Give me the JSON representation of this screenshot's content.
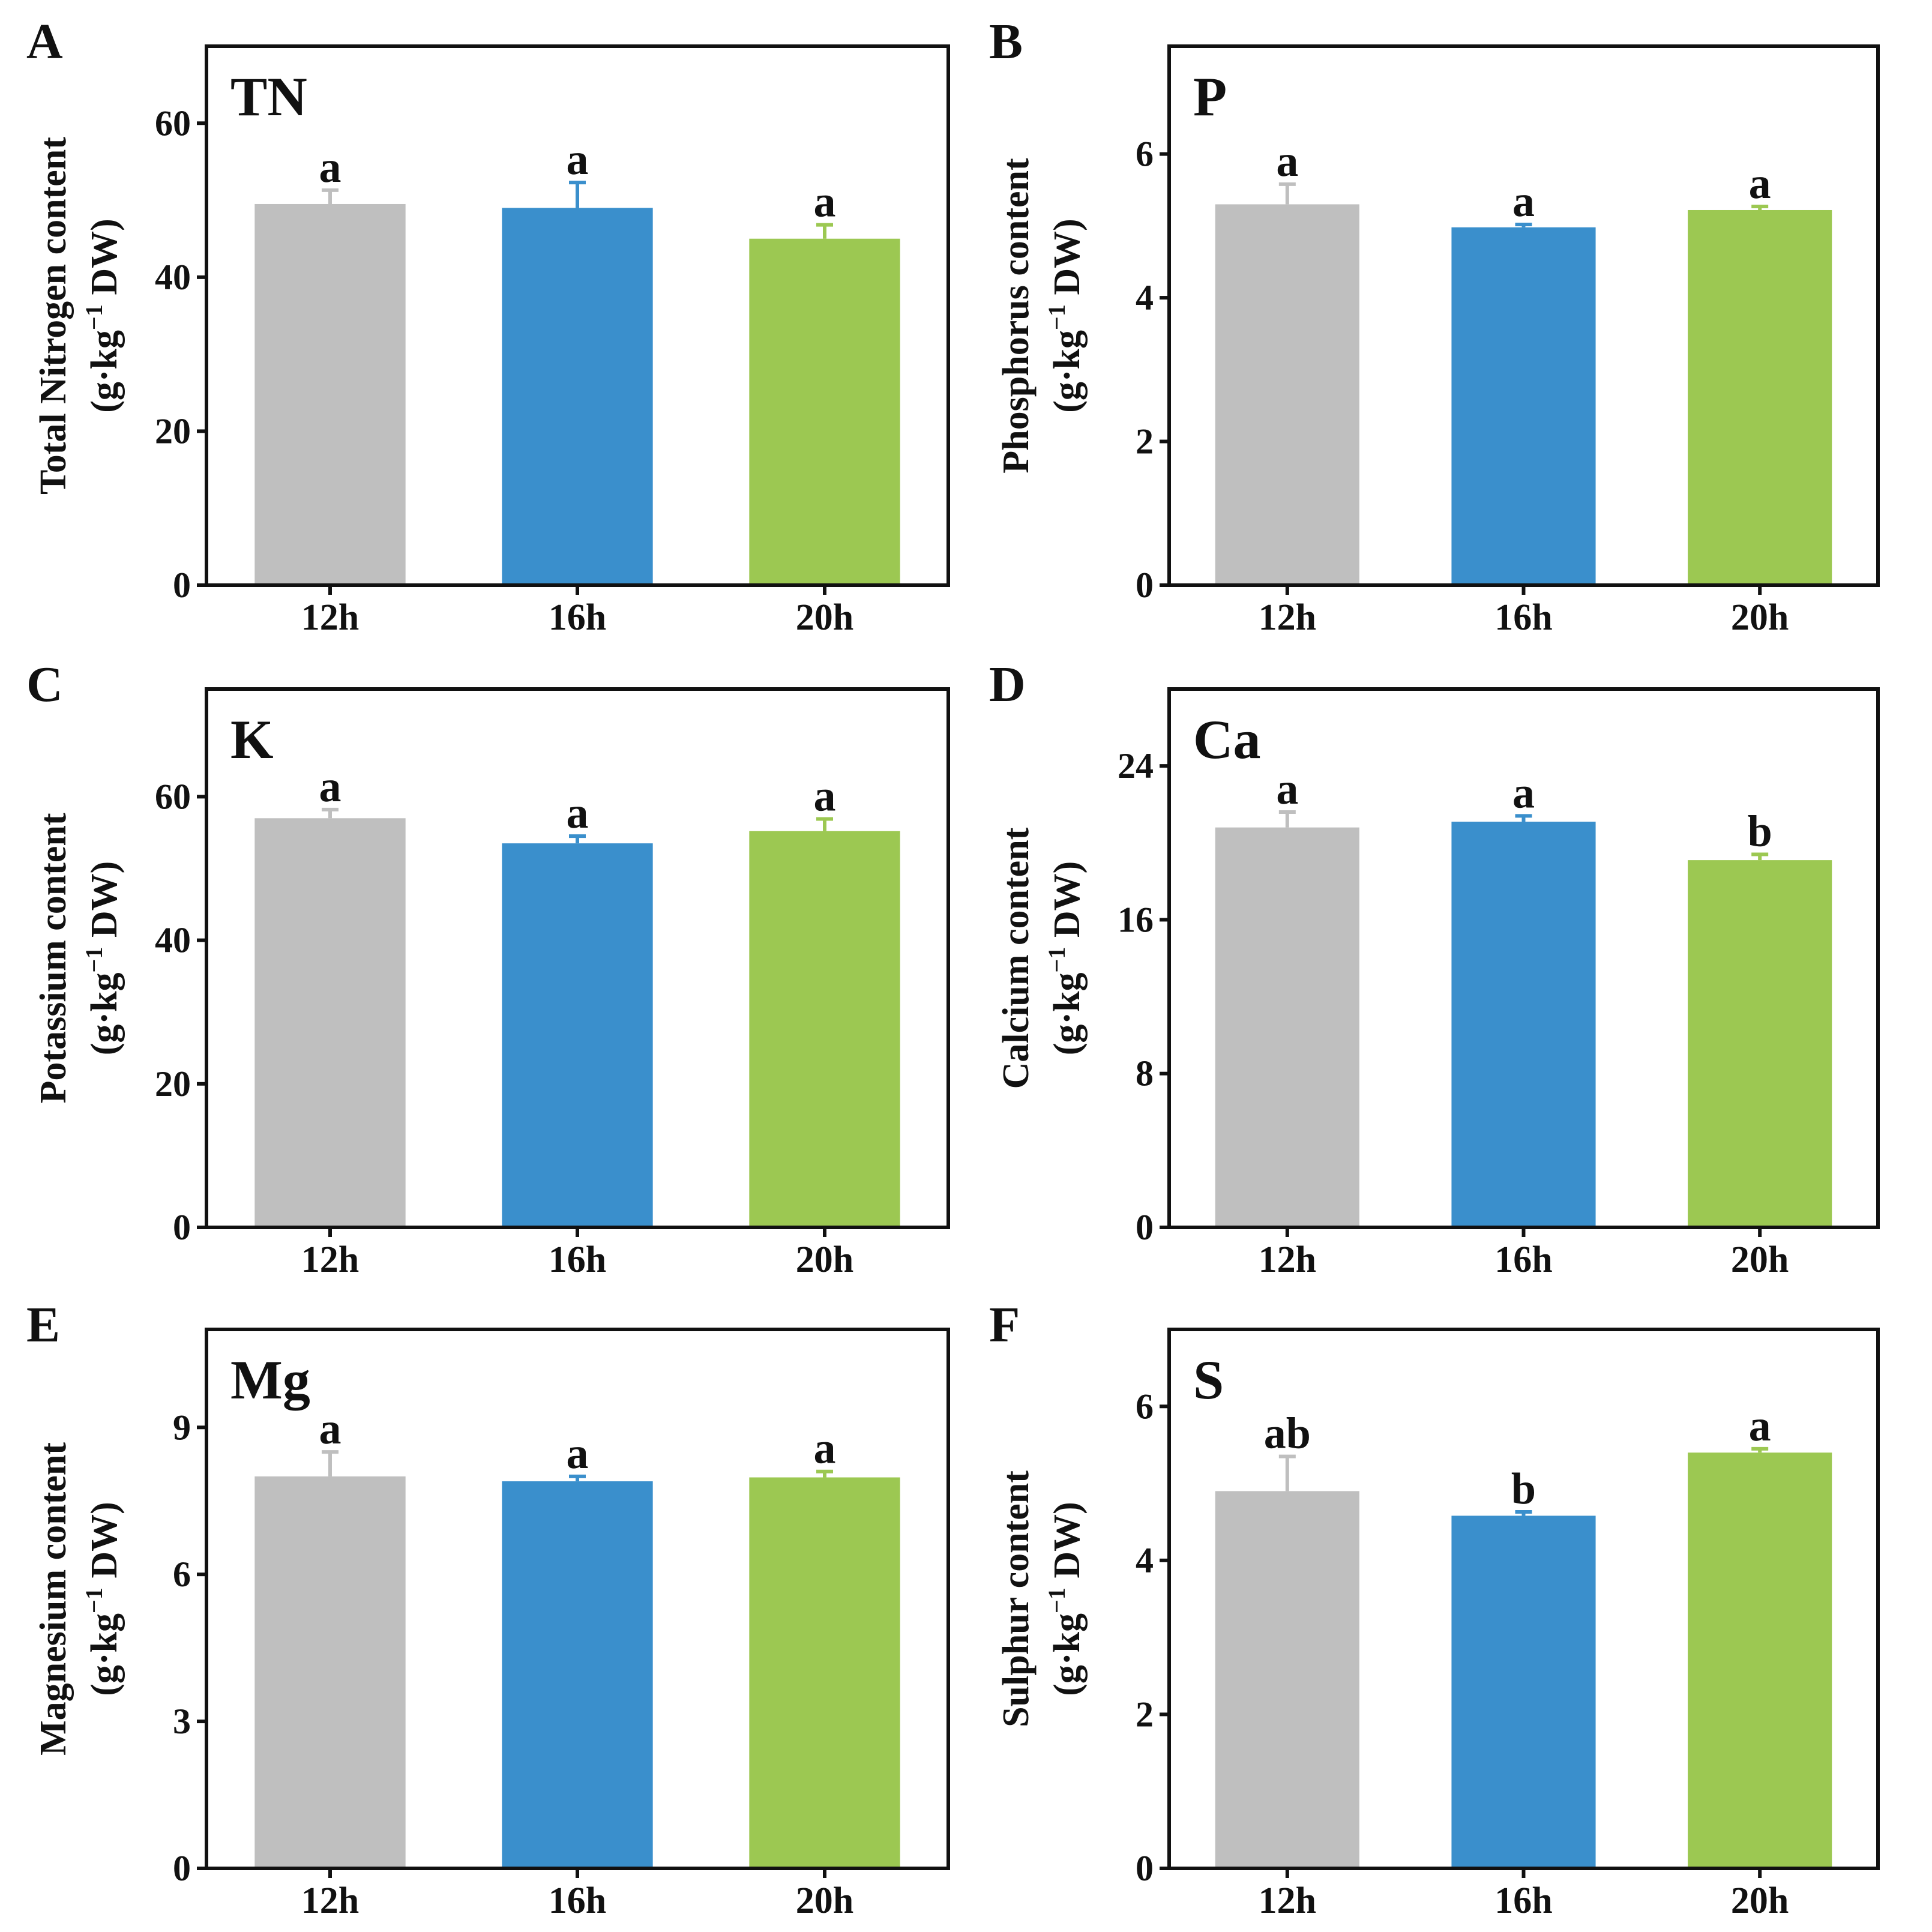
{
  "colors": {
    "12h": "#bfbfbf",
    "16h": "#3a8fcc",
    "20h": "#9cc852"
  },
  "unit": {
    "prefix": "(g·kg",
    "sup": "−1",
    "suffix": " DW)"
  },
  "chart_data": [
    {
      "panel": "A",
      "label": "TN",
      "type": "bar",
      "ylabel": "Total Nitrogen content",
      "categories": [
        "12h",
        "16h",
        "20h"
      ],
      "values": [
        49.5,
        49.0,
        45.0
      ],
      "errors": [
        1.8,
        3.3,
        1.8
      ],
      "significance": [
        "a",
        "a",
        "a"
      ],
      "ylim": [
        0,
        70
      ],
      "yticks": [
        0,
        20,
        40,
        60
      ]
    },
    {
      "panel": "B",
      "label": "P",
      "type": "bar",
      "ylabel": "Phosphorus content",
      "categories": [
        "12h",
        "16h",
        "20h"
      ],
      "values": [
        5.3,
        4.98,
        5.22
      ],
      "errors": [
        0.28,
        0.04,
        0.05
      ],
      "significance": [
        "a",
        "a",
        "a"
      ],
      "ylim": [
        0,
        7.5
      ],
      "yticks": [
        0,
        2,
        4,
        6
      ]
    },
    {
      "panel": "C",
      "label": "K",
      "type": "bar",
      "ylabel": "Potassium content",
      "categories": [
        "12h",
        "16h",
        "20h"
      ],
      "values": [
        57.0,
        53.5,
        55.2
      ],
      "errors": [
        1.2,
        1.0,
        1.7
      ],
      "significance": [
        "a",
        "a",
        "a"
      ],
      "ylim": [
        0,
        75
      ],
      "yticks": [
        0,
        20,
        40,
        60
      ]
    },
    {
      "panel": "D",
      "label": "Ca",
      "type": "bar",
      "ylabel": "Calcium  content",
      "categories": [
        "12h",
        "16h",
        "20h"
      ],
      "values": [
        20.8,
        21.1,
        19.1
      ],
      "errors": [
        0.8,
        0.3,
        0.3
      ],
      "significance": [
        "a",
        "a",
        "b"
      ],
      "ylim": [
        0,
        28
      ],
      "yticks": [
        0,
        8,
        16,
        24
      ]
    },
    {
      "panel": "E",
      "label": "Mg",
      "type": "bar",
      "ylabel": "Magnesium content",
      "categories": [
        "12h",
        "16h",
        "20h"
      ],
      "values": [
        8.0,
        7.9,
        7.98
      ],
      "errors": [
        0.5,
        0.1,
        0.12
      ],
      "significance": [
        "a",
        "a",
        "a"
      ],
      "ylim": [
        0,
        11
      ],
      "yticks": [
        0,
        3,
        6,
        9
      ]
    },
    {
      "panel": "F",
      "label": "S",
      "type": "bar",
      "ylabel": "Sulphur content",
      "categories": [
        "12h",
        "16h",
        "20h"
      ],
      "values": [
        4.9,
        4.58,
        5.4
      ],
      "errors": [
        0.45,
        0.05,
        0.05
      ],
      "significance": [
        "ab",
        "b",
        "a"
      ],
      "ylim": [
        0,
        7
      ],
      "yticks": [
        0,
        2,
        4,
        6
      ]
    }
  ]
}
